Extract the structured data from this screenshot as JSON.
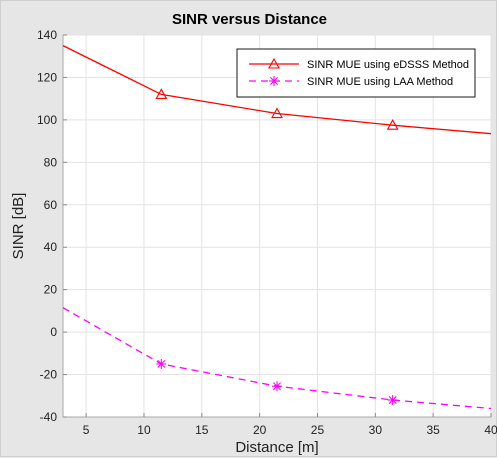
{
  "chart_data": {
    "type": "line",
    "title": "SINR versus Distance",
    "xlabel": "Distance [m]",
    "ylabel": "SINR [dB]",
    "xlim": [
      3,
      40
    ],
    "ylim": [
      -40,
      140
    ],
    "xticks": [
      5,
      10,
      15,
      20,
      25,
      30,
      35,
      40
    ],
    "yticks": [
      -40,
      -20,
      0,
      20,
      40,
      60,
      80,
      100,
      120,
      140
    ],
    "grid": true,
    "legend_position": "top-right",
    "series": [
      {
        "name": "SINR MUE using eDSSS Method",
        "color": "#ff0000",
        "line_style": "solid",
        "marker": "triangle",
        "x": [
          3,
          11.5,
          21.5,
          31.5,
          40
        ],
        "y": [
          135,
          112,
          103,
          97.5,
          93.5
        ],
        "marker_x": [
          11.5,
          21.5,
          31.5
        ],
        "marker_y": [
          112,
          103,
          97.5
        ]
      },
      {
        "name": "SINR MUE using LAA Method",
        "color": "#ff00ff",
        "line_style": "dashed",
        "marker": "asterisk",
        "x": [
          3,
          11.5,
          21.5,
          31.5,
          40
        ],
        "y": [
          11.5,
          -15,
          -25.5,
          -32,
          -36
        ],
        "marker_x": [
          11.5,
          21.5,
          31.5
        ],
        "marker_y": [
          -15,
          -25.5,
          -32
        ]
      }
    ]
  }
}
